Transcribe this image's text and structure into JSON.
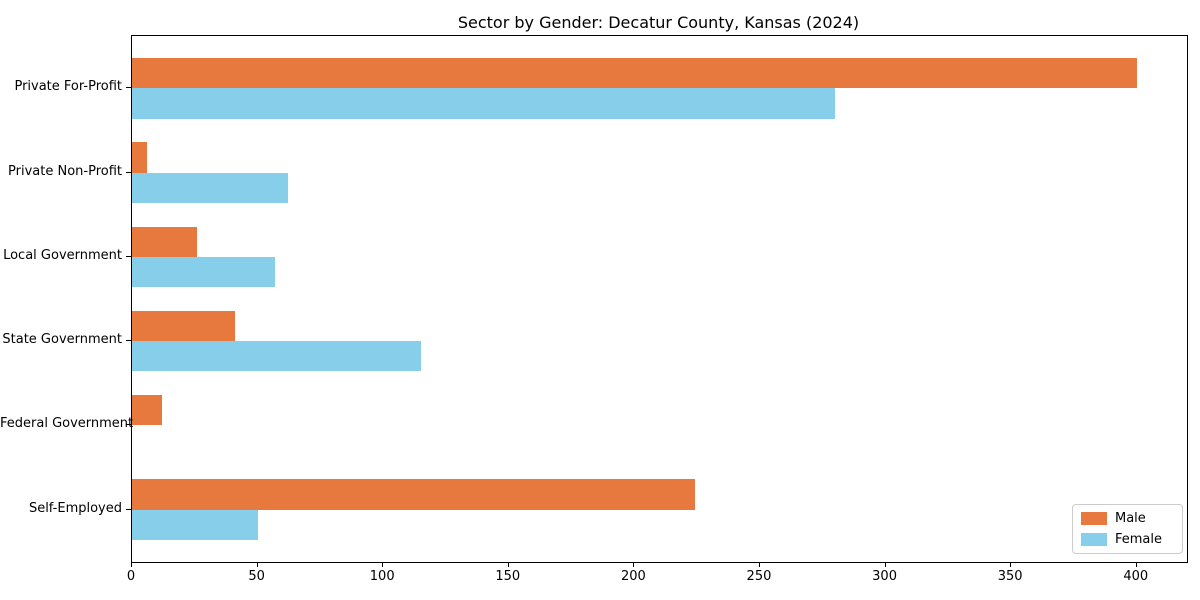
{
  "title": "Sector by Gender: Decatur County, Kansas (2024)",
  "chart_data": {
    "type": "bar",
    "orientation": "horizontal",
    "title": "Sector by Gender: Decatur County, Kansas (2024)",
    "xlabel": "",
    "ylabel": "",
    "categories": [
      "Private For-Profit",
      "Private Non-Profit",
      "Local Government",
      "State Government",
      "Federal Government",
      "Self-Employed"
    ],
    "series": [
      {
        "name": "Male",
        "color": "#e8793e",
        "values": [
          400,
          6,
          26,
          41,
          12,
          224
        ]
      },
      {
        "name": "Female",
        "color": "#87ceeb",
        "values": [
          280,
          62,
          57,
          115,
          0,
          50
        ]
      }
    ],
    "xlim": [
      0,
      420
    ],
    "xticks": [
      0,
      50,
      100,
      150,
      200,
      250,
      300,
      350,
      400
    ],
    "grid": false,
    "legend": {
      "position": "lower right",
      "entries": [
        "Male",
        "Female"
      ]
    }
  }
}
